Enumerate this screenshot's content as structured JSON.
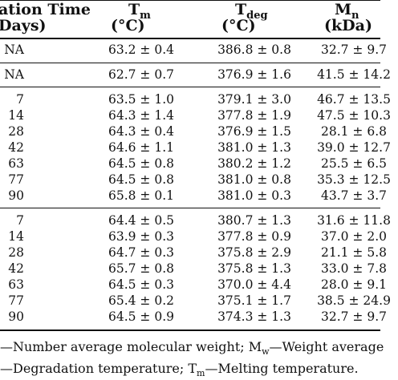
{
  "header": {
    "col0_line1": "ation Time",
    "col0_line2": "Days)",
    "col1_main": "T",
    "col1_sub": "m",
    "col1_unit": "(°C)",
    "col2_main": "T",
    "col2_sub": "deg",
    "col2_unit": "(°C)",
    "col3_main": "M",
    "col3_sub": "n",
    "col3_unit": "(kDa)"
  },
  "groups": [
    {
      "rows": [
        {
          "time": "NA",
          "tm": "63.2 ± 0.4",
          "tdeg": "386.8 ± 0.8",
          "mn": "32.7 ± 9.7"
        }
      ]
    },
    {
      "rows": [
        {
          "time": "NA",
          "tm": "62.7 ± 0.7",
          "tdeg": "376.9 ± 1.6",
          "mn": "41.5 ± 14.2"
        }
      ]
    },
    {
      "rows": [
        {
          "time": "7",
          "tm": "63.5 ± 1.0",
          "tdeg": "379.1 ± 3.0",
          "mn": "46.7 ± 13.5"
        },
        {
          "time": "14",
          "tm": "64.3 ± 1.4",
          "tdeg": "377.8 ± 1.9",
          "mn": "47.5 ± 10.3"
        },
        {
          "time": "28",
          "tm": "64.3 ± 0.4",
          "tdeg": "376.9 ± 1.5",
          "mn": "28.1 ± 6.8"
        },
        {
          "time": "42",
          "tm": "64.6 ± 1.1",
          "tdeg": "381.0 ± 1.3",
          "mn": "39.0 ± 12.7"
        },
        {
          "time": "63",
          "tm": "64.5 ± 0.8",
          "tdeg": "380.2 ± 1.2",
          "mn": "25.5 ± 6.5"
        },
        {
          "time": "77",
          "tm": "64.5 ± 0.8",
          "tdeg": "381.0 ± 0.8",
          "mn": "35.3 ± 12.5"
        },
        {
          "time": "90",
          "tm": "65.8 ± 0.1",
          "tdeg": "381.0 ± 0.3",
          "mn": "43.7 ± 3.7"
        }
      ]
    },
    {
      "rows": [
        {
          "time": "7",
          "tm": "64.4 ± 0.5",
          "tdeg": "380.7 ± 1.3",
          "mn": "31.6 ± 11.8"
        },
        {
          "time": "14",
          "tm": "63.9 ± 0.3",
          "tdeg": "377.8 ± 0.9",
          "mn": "37.0 ± 2.0"
        },
        {
          "time": "28",
          "tm": "64.7 ± 0.3",
          "tdeg": "375.8 ± 2.9",
          "mn": "21.1 ± 5.8"
        },
        {
          "time": "42",
          "tm": "65.7 ± 0.8",
          "tdeg": "375.8 ± 1.3",
          "mn": "33.0 ± 7.8"
        },
        {
          "time": "63",
          "tm": "64.5 ± 0.3",
          "tdeg": "370.0 ± 4.4",
          "mn": "28.0 ± 9.1"
        },
        {
          "time": "77",
          "tm": "65.4 ± 0.2",
          "tdeg": "375.1 ± 1.7",
          "mn": "38.5 ± 24.9"
        },
        {
          "time": "90",
          "tm": "64.5 ± 0.9",
          "tdeg": "374.3 ± 1.3",
          "mn": "32.7 ± 9.7"
        }
      ]
    }
  ],
  "footnote": {
    "line1_a": "—Number average molecular weight; M",
    "line1_sub": "w",
    "line1_b": "—Weight average",
    "line2_a": "—Degradation temperature; T",
    "line2_sub": "m",
    "line2_b": "—Melting temperature."
  }
}
